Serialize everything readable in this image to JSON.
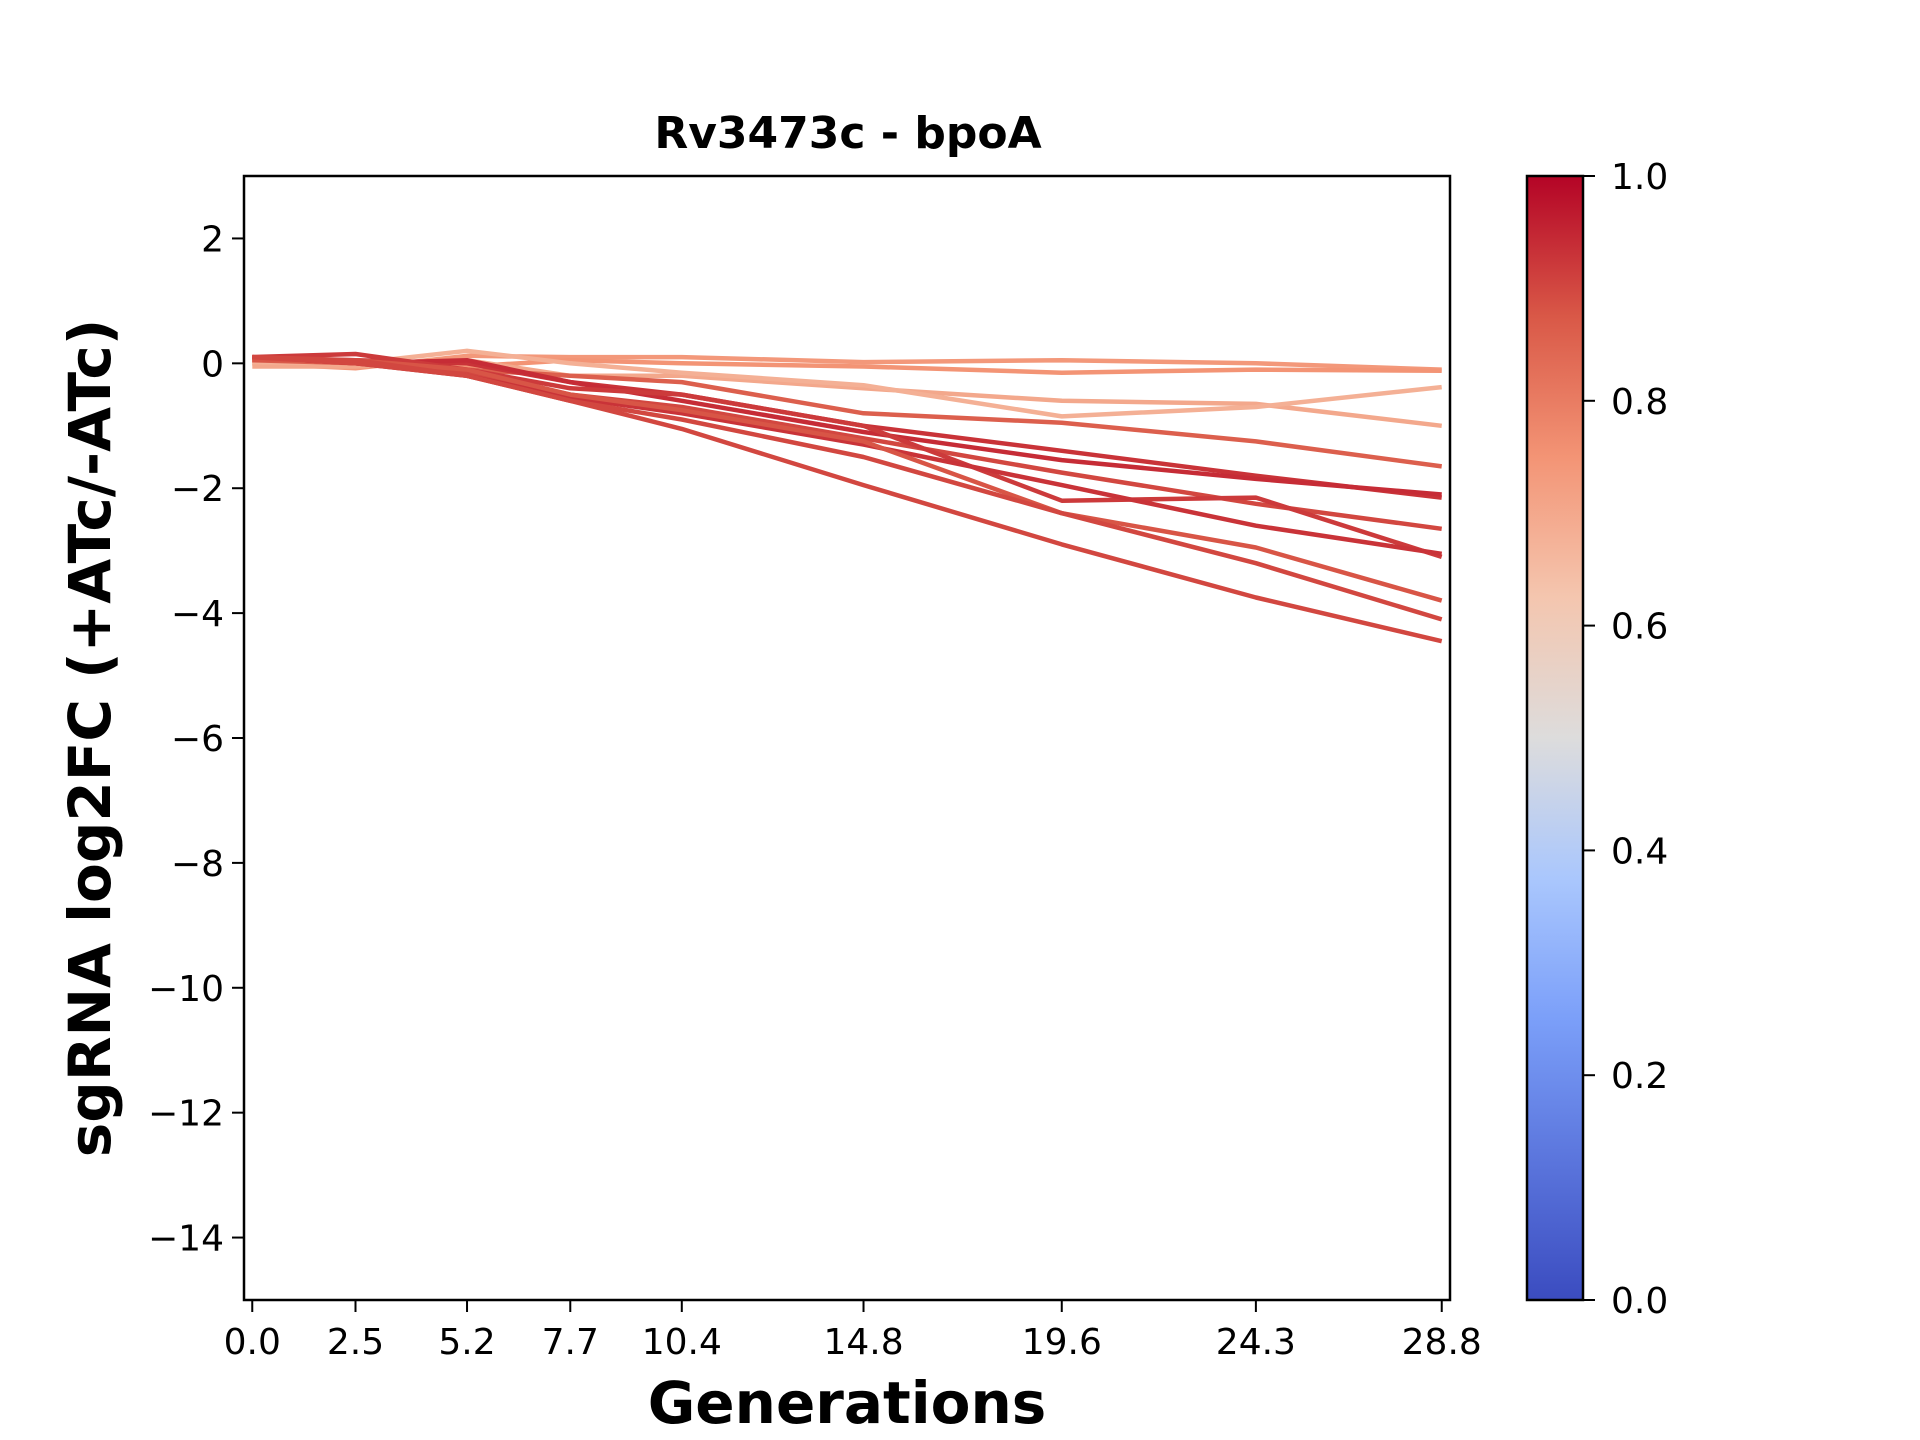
{
  "chart_data": {
    "type": "line",
    "title": "Rv3473c - bpoA",
    "xlabel": "Generations",
    "ylabel": "sgRNA log2FC (+ATc/-ATc)",
    "x": [
      0.0,
      2.5,
      5.2,
      7.7,
      10.4,
      14.8,
      19.6,
      24.3,
      28.8
    ],
    "x_tick_labels": [
      "0.0",
      "2.5",
      "5.2",
      "7.7",
      "10.4",
      "14.8",
      "19.6",
      "24.3",
      "28.8"
    ],
    "xlim": [
      -0.2,
      29.0
    ],
    "ylim": [
      -15,
      3
    ],
    "y_ticks": [
      2,
      0,
      -2,
      -4,
      -6,
      -8,
      -10,
      -12,
      -14
    ],
    "y_tick_labels": [
      "2",
      "0",
      "−2",
      "−4",
      "−6",
      "−8",
      "−10",
      "−12",
      "−14"
    ],
    "grid": false,
    "colorbar": {
      "colormap": "coolwarm",
      "range": [
        0.0,
        1.0
      ],
      "ticks": [
        0.0,
        0.2,
        0.4,
        0.6,
        0.8,
        1.0
      ],
      "tick_labels": [
        "0.0",
        "0.2",
        "0.4",
        "0.6",
        "0.8",
        "1.0"
      ],
      "stops": [
        {
          "value": 0.0,
          "color": "#3b4cc0"
        },
        {
          "value": 0.25,
          "color": "#7b9ff9"
        },
        {
          "value": 0.375,
          "color": "#aac7fd"
        },
        {
          "value": 0.5,
          "color": "#dddcdc"
        },
        {
          "value": 0.625,
          "color": "#f4c6af"
        },
        {
          "value": 0.75,
          "color": "#f39475"
        },
        {
          "value": 0.875,
          "color": "#d95847"
        },
        {
          "value": 1.0,
          "color": "#b40426"
        }
      ]
    },
    "series": [
      {
        "color_value": 0.74,
        "values": [
          0.0,
          -0.08,
          0.12,
          0.1,
          0.1,
          0.02,
          0.05,
          0.0,
          -0.1
        ]
      },
      {
        "color_value": 0.75,
        "values": [
          0.05,
          0.05,
          -0.05,
          0.05,
          0.0,
          -0.05,
          -0.15,
          -0.1,
          -0.12
        ]
      },
      {
        "color_value": 0.7,
        "values": [
          -0.05,
          -0.05,
          0.05,
          -0.2,
          -0.2,
          -0.4,
          -0.6,
          -0.65,
          -1.0
        ]
      },
      {
        "color_value": 0.68,
        "values": [
          0.02,
          0.0,
          0.2,
          0.0,
          -0.15,
          -0.35,
          -0.85,
          -0.7,
          -0.38
        ]
      },
      {
        "color_value": 0.86,
        "values": [
          0.05,
          0.0,
          -0.1,
          -0.2,
          -0.3,
          -0.8,
          -0.95,
          -1.25,
          -1.65
        ]
      },
      {
        "color_value": 0.93,
        "values": [
          0.08,
          0.05,
          0.0,
          -0.3,
          -0.5,
          -1.0,
          -1.4,
          -1.8,
          -2.15
        ]
      },
      {
        "color_value": 0.94,
        "values": [
          0.1,
          0.0,
          0.05,
          -0.3,
          -0.6,
          -1.1,
          -1.55,
          -1.85,
          -2.1
        ]
      },
      {
        "color_value": 0.9,
        "values": [
          0.1,
          0.0,
          -0.15,
          -0.5,
          -0.7,
          -1.2,
          -1.75,
          -2.25,
          -2.65
        ]
      },
      {
        "color_value": 0.92,
        "values": [
          0.1,
          0.15,
          -0.1,
          -0.4,
          -0.5,
          -1.0,
          -2.2,
          -2.15,
          -3.1
        ]
      },
      {
        "color_value": 0.93,
        "values": [
          0.1,
          0.0,
          -0.2,
          -0.55,
          -0.8,
          -1.3,
          -1.95,
          -2.6,
          -3.05
        ]
      },
      {
        "color_value": 0.88,
        "values": [
          0.05,
          0.05,
          -0.1,
          -0.5,
          -0.75,
          -1.25,
          -2.4,
          -2.95,
          -3.8
        ]
      },
      {
        "color_value": 0.9,
        "values": [
          0.1,
          0.0,
          -0.2,
          -0.6,
          -0.9,
          -1.5,
          -2.4,
          -3.2,
          -4.1
        ]
      },
      {
        "color_value": 0.9,
        "values": [
          0.1,
          0.05,
          -0.2,
          -0.6,
          -1.05,
          -1.95,
          -2.9,
          -3.75,
          -4.45
        ]
      }
    ]
  }
}
